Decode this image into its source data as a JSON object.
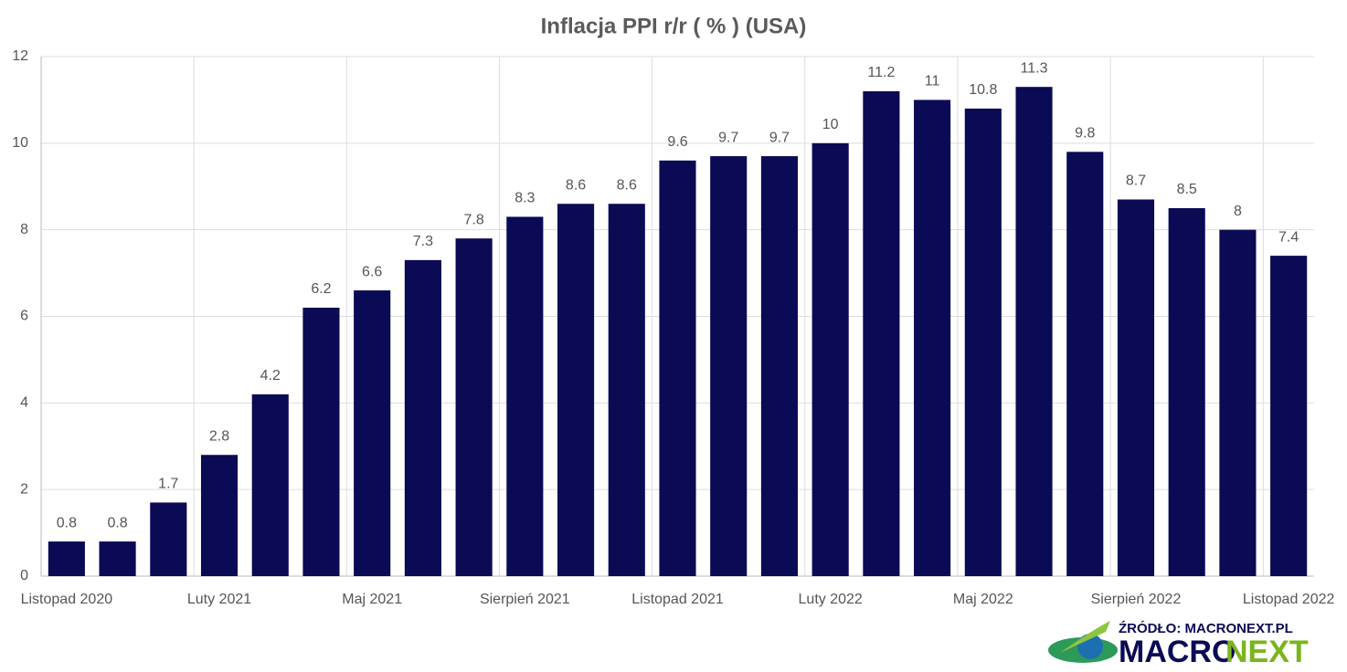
{
  "chart_data": {
    "type": "bar",
    "title": "Inflacja PPI r/r ( % ) (USA)",
    "categories": [
      "Listopad 2020",
      null,
      null,
      "Luty 2021",
      null,
      null,
      "Maj 2021",
      null,
      null,
      "Sierpień 2021",
      null,
      null,
      "Listopad 2021",
      null,
      null,
      "Luty 2022",
      null,
      null,
      "Maj 2022",
      null,
      null,
      "Sierpień 2022",
      null,
      null,
      "Listopad 2022"
    ],
    "values": [
      0.8,
      0.8,
      1.7,
      2.8,
      4.2,
      6.2,
      6.6,
      7.3,
      7.8,
      8.3,
      8.6,
      8.6,
      9.6,
      9.7,
      9.7,
      10,
      11.2,
      11,
      10.8,
      11.3,
      9.8,
      8.7,
      8.5,
      8,
      7.4
    ],
    "color": "#0b0a55",
    "ylim": [
      0,
      12
    ],
    "yticks": [
      0,
      2,
      4,
      6,
      8,
      10,
      12
    ],
    "grid": true
  },
  "source": {
    "label": "ŹRÓDŁO: MACRONEXT.PL",
    "logo": [
      "MACRO",
      "NEXT"
    ]
  }
}
